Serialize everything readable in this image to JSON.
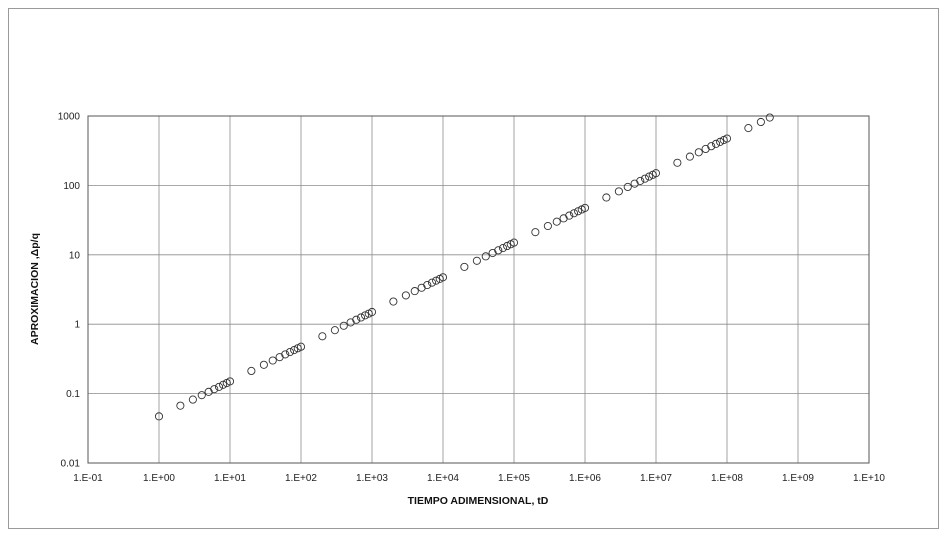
{
  "chart_data": {
    "type": "scatter",
    "xlabel": "TIEMPO ADIMENSIONAL, tD",
    "ylabel": "APROXIMACION ,Δp/q",
    "x_scale": "log",
    "y_scale": "log",
    "xlim": [
      0.1,
      10000000000.0
    ],
    "ylim": [
      0.01,
      1000
    ],
    "x_ticks": [
      "1.E-01",
      "1.E+00",
      "1.E+01",
      "1.E+02",
      "1.E+03",
      "1.E+04",
      "1.E+05",
      "1.E+06",
      "1.E+07",
      "1.E+08",
      "1.E+09",
      "1.E+10"
    ],
    "y_ticks": [
      "1000",
      "100",
      "10",
      "1",
      "0.1",
      "0.01"
    ],
    "grid": true,
    "marker": "open-circle",
    "points": [
      [
        1,
        0.047
      ],
      [
        2,
        0.067
      ],
      [
        3,
        0.082
      ],
      [
        4,
        0.095
      ],
      [
        5,
        0.106
      ],
      [
        6,
        0.116
      ],
      [
        7,
        0.125
      ],
      [
        8,
        0.134
      ],
      [
        9,
        0.142
      ],
      [
        10,
        0.15
      ],
      [
        20,
        0.212
      ],
      [
        30,
        0.26
      ],
      [
        40,
        0.3
      ],
      [
        50,
        0.335
      ],
      [
        60,
        0.367
      ],
      [
        70,
        0.397
      ],
      [
        80,
        0.424
      ],
      [
        90,
        0.45
      ],
      [
        100,
        0.474
      ],
      [
        200,
        0.67
      ],
      [
        300,
        0.82
      ],
      [
        400,
        0.95
      ],
      [
        500,
        1.06
      ],
      [
        600,
        1.16
      ],
      [
        700,
        1.25
      ],
      [
        800,
        1.34
      ],
      [
        900,
        1.42
      ],
      [
        1000,
        1.5
      ],
      [
        2000,
        2.12
      ],
      [
        3000,
        2.6
      ],
      [
        4000,
        3.0
      ],
      [
        5000,
        3.35
      ],
      [
        6000,
        3.67
      ],
      [
        7000,
        3.97
      ],
      [
        8000,
        4.24
      ],
      [
        9000,
        4.5
      ],
      [
        10000,
        4.74
      ],
      [
        20000,
        6.7
      ],
      [
        30000,
        8.2
      ],
      [
        40000,
        9.5
      ],
      [
        50000,
        10.6
      ],
      [
        60000,
        11.6
      ],
      [
        70000,
        12.5
      ],
      [
        80000,
        13.4
      ],
      [
        90000,
        14.2
      ],
      [
        100000,
        15.0
      ],
      [
        200000,
        21.2
      ],
      [
        300000,
        26.0
      ],
      [
        400000,
        30.0
      ],
      [
        500000,
        33.5
      ],
      [
        600000,
        36.7
      ],
      [
        700000,
        39.7
      ],
      [
        800000,
        42.4
      ],
      [
        900000,
        45.0
      ],
      [
        1000000,
        47.4
      ],
      [
        2000000,
        67
      ],
      [
        3000000,
        82
      ],
      [
        4000000,
        95
      ],
      [
        5000000,
        106
      ],
      [
        6000000,
        116
      ],
      [
        7000000,
        125
      ],
      [
        8000000,
        134
      ],
      [
        9000000,
        142
      ],
      [
        10000000,
        150
      ],
      [
        20000000,
        212
      ],
      [
        30000000,
        260
      ],
      [
        40000000,
        300
      ],
      [
        50000000,
        335
      ],
      [
        60000000,
        367
      ],
      [
        70000000,
        397
      ],
      [
        80000000,
        424
      ],
      [
        90000000,
        450
      ],
      [
        100000000,
        474
      ],
      [
        200000000,
        670
      ],
      [
        300000000,
        820
      ],
      [
        400000000,
        950
      ]
    ]
  }
}
